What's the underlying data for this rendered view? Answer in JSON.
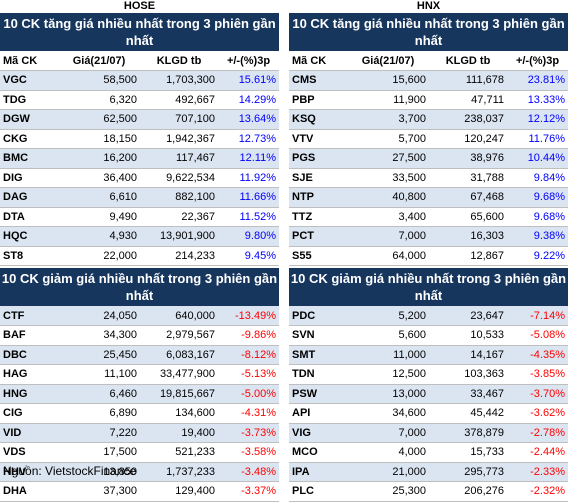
{
  "source": "Nguồn: VietstockFinance",
  "columns": [
    "Mã CK",
    "Giá(21/07)",
    "KLGD tb",
    "+/-(%)3p"
  ],
  "hose": {
    "exchange": "HOSE",
    "gainers_title": "10 CK tăng giá nhiều nhất trong 3 phiên gần nhất",
    "gainers": [
      {
        "code": "VGC",
        "price": "58,500",
        "vol": "1,703,300",
        "chg": "15.61%"
      },
      {
        "code": "TDG",
        "price": "6,320",
        "vol": "492,667",
        "chg": "14.29%"
      },
      {
        "code": "DGW",
        "price": "62,500",
        "vol": "707,100",
        "chg": "13.64%"
      },
      {
        "code": "CKG",
        "price": "18,150",
        "vol": "1,942,367",
        "chg": "12.73%"
      },
      {
        "code": "BMC",
        "price": "16,200",
        "vol": "117,467",
        "chg": "12.11%"
      },
      {
        "code": "DIG",
        "price": "36,400",
        "vol": "9,622,534",
        "chg": "11.92%"
      },
      {
        "code": "DAG",
        "price": "6,610",
        "vol": "882,100",
        "chg": "11.66%"
      },
      {
        "code": "DTA",
        "price": "9,490",
        "vol": "22,367",
        "chg": "11.52%"
      },
      {
        "code": "HQC",
        "price": "4,930",
        "vol": "13,901,900",
        "chg": "9.80%"
      },
      {
        "code": "ST8",
        "price": "22,000",
        "vol": "214,233",
        "chg": "9.45%"
      }
    ],
    "losers_title": "10 CK giảm giá nhiều nhất trong 3 phiên gần nhất",
    "losers": [
      {
        "code": "CTF",
        "price": "24,050",
        "vol": "640,000",
        "chg": "-13.49%"
      },
      {
        "code": "BAF",
        "price": "34,300",
        "vol": "2,979,567",
        "chg": "-9.86%"
      },
      {
        "code": "DBC",
        "price": "25,450",
        "vol": "6,083,167",
        "chg": "-8.12%"
      },
      {
        "code": "HAG",
        "price": "11,100",
        "vol": "33,477,900",
        "chg": "-5.13%"
      },
      {
        "code": "HNG",
        "price": "6,460",
        "vol": "19,815,667",
        "chg": "-5.00%"
      },
      {
        "code": "CIG",
        "price": "6,890",
        "vol": "134,600",
        "chg": "-4.31%"
      },
      {
        "code": "VID",
        "price": "7,220",
        "vol": "19,400",
        "chg": "-3.73%"
      },
      {
        "code": "VDS",
        "price": "17,500",
        "vol": "521,233",
        "chg": "-3.58%"
      },
      {
        "code": "HHV",
        "price": "13,850",
        "vol": "1,737,233",
        "chg": "-3.48%"
      },
      {
        "code": "DHA",
        "price": "37,300",
        "vol": "129,400",
        "chg": "-3.37%"
      }
    ]
  },
  "hnx": {
    "exchange": "HNX",
    "gainers_title": "10 CK tăng giá nhiều nhất trong 3 phiên gần nhất",
    "gainers": [
      {
        "code": "CMS",
        "price": "15,600",
        "vol": "111,678",
        "chg": "23.81%"
      },
      {
        "code": "PBP",
        "price": "11,900",
        "vol": "47,711",
        "chg": "13.33%"
      },
      {
        "code": "KSQ",
        "price": "3,700",
        "vol": "238,037",
        "chg": "12.12%"
      },
      {
        "code": "VTV",
        "price": "5,700",
        "vol": "120,247",
        "chg": "11.76%"
      },
      {
        "code": "PGS",
        "price": "27,500",
        "vol": "38,976",
        "chg": "10.44%"
      },
      {
        "code": "SJE",
        "price": "33,500",
        "vol": "31,788",
        "chg": "9.84%"
      },
      {
        "code": "NTP",
        "price": "40,800",
        "vol": "67,468",
        "chg": "9.68%"
      },
      {
        "code": "TTZ",
        "price": "3,400",
        "vol": "65,600",
        "chg": "9.68%"
      },
      {
        "code": "PCT",
        "price": "7,000",
        "vol": "16,303",
        "chg": "9.38%"
      },
      {
        "code": "S55",
        "price": "64,000",
        "vol": "12,867",
        "chg": "9.22%"
      }
    ],
    "losers_title": "10 CK giảm giá nhiều nhất trong 3 phiên gần nhất",
    "losers": [
      {
        "code": "PDC",
        "price": "5,200",
        "vol": "23,647",
        "chg": "-7.14%"
      },
      {
        "code": "SVN",
        "price": "5,600",
        "vol": "10,533",
        "chg": "-5.08%"
      },
      {
        "code": "SMT",
        "price": "11,000",
        "vol": "14,167",
        "chg": "-4.35%"
      },
      {
        "code": "TDN",
        "price": "12,500",
        "vol": "103,363",
        "chg": "-3.85%"
      },
      {
        "code": "PSW",
        "price": "13,000",
        "vol": "33,467",
        "chg": "-3.70%"
      },
      {
        "code": "API",
        "price": "34,600",
        "vol": "45,442",
        "chg": "-3.62%"
      },
      {
        "code": "VIG",
        "price": "7,000",
        "vol": "378,879",
        "chg": "-2.78%"
      },
      {
        "code": "MCO",
        "price": "4,000",
        "vol": "15,733",
        "chg": "-2.44%"
      },
      {
        "code": "IPA",
        "price": "21,000",
        "vol": "295,773",
        "chg": "-2.33%"
      },
      {
        "code": "PLC",
        "price": "25,300",
        "vol": "206,276",
        "chg": "-2.32%"
      }
    ]
  }
}
